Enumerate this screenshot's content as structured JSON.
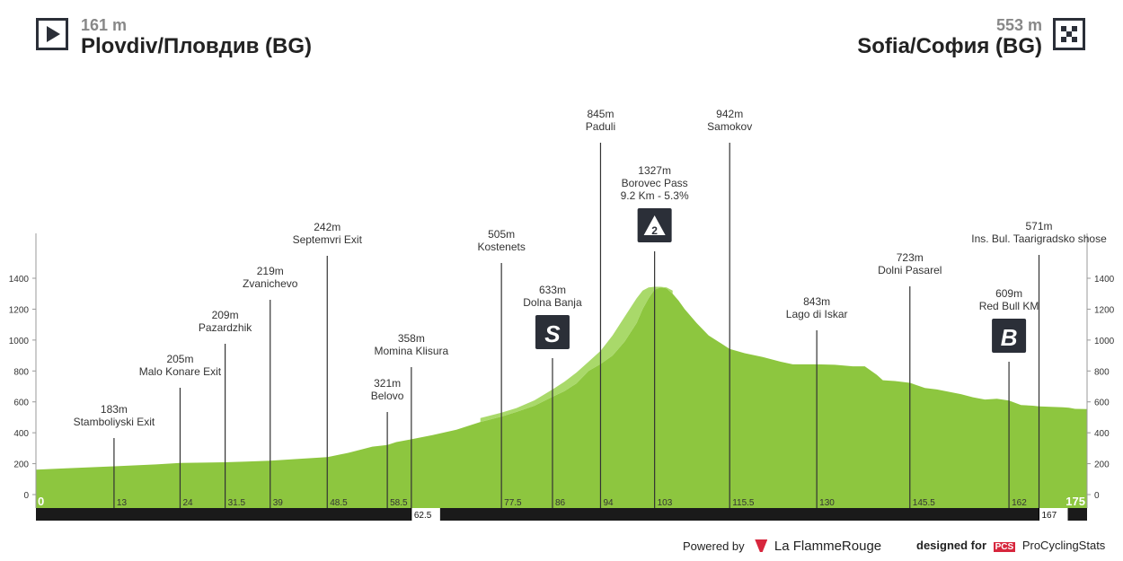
{
  "start": {
    "alt": "161 m",
    "name": "Plovdiv/Пловдив (BG)"
  },
  "finish": {
    "alt": "553 m",
    "name": "Sofia/София (BG)"
  },
  "footer": {
    "powered": "Powered by",
    "brand": "La FlammeRouge",
    "designed": "designed for",
    "pcs": "PCS",
    "brand2": "ProCyclingStats"
  },
  "chart_data": {
    "type": "area",
    "title": "",
    "xlabel": "",
    "ylabel": "",
    "ylim": [
      0,
      1400
    ],
    "xlim": [
      0,
      175
    ],
    "y_ticks": [
      0,
      200,
      400,
      600,
      800,
      1000,
      1200,
      1400
    ],
    "x_ticks": [
      "0",
      "13",
      "24",
      "31.5",
      "39",
      "48.5",
      "58.5",
      "77.5",
      "86",
      "94",
      "103",
      "115.5",
      "130",
      "145.5",
      "162",
      "175"
    ],
    "bar_ticks": [
      "62.5",
      "167"
    ],
    "profile": {
      "x": [
        0,
        5,
        13,
        20,
        24,
        28,
        31.5,
        35,
        39,
        44,
        48.5,
        52,
        56,
        58.5,
        60,
        62.5,
        66,
        70,
        74,
        77.5,
        80,
        83,
        86,
        88,
        90,
        92,
        94,
        96,
        98,
        100,
        101,
        102,
        103,
        104,
        105,
        106,
        107,
        108,
        110,
        112,
        114,
        115.5,
        118,
        121,
        124,
        126,
        128,
        130,
        133,
        136,
        138,
        140,
        141,
        143,
        145.5,
        148,
        150,
        152,
        154,
        156,
        158,
        160,
        162,
        164,
        166,
        167,
        169,
        171,
        172,
        173,
        175
      ],
      "y": [
        161,
        170,
        183,
        195,
        205,
        207,
        209,
        214,
        219,
        232,
        242,
        270,
        310,
        321,
        340,
        358,
        385,
        420,
        470,
        505,
        535,
        575,
        633,
        670,
        720,
        800,
        845,
        900,
        990,
        1110,
        1200,
        1270,
        1327,
        1340,
        1335,
        1300,
        1255,
        1200,
        1110,
        1030,
        980,
        942,
        915,
        890,
        860,
        843,
        843,
        843,
        840,
        830,
        830,
        775,
        740,
        735,
        723,
        690,
        680,
        665,
        650,
        630,
        615,
        620,
        609,
        580,
        575,
        571,
        568,
        565,
        562,
        555,
        553
      ]
    },
    "profile_top": {
      "x": [
        74,
        77.5,
        80,
        83,
        86,
        88,
        90,
        92,
        94,
        96,
        98,
        100,
        101,
        102,
        103,
        104,
        105,
        106
      ],
      "y": [
        495,
        530,
        560,
        610,
        680,
        730,
        790,
        860,
        930,
        1030,
        1150,
        1270,
        1320,
        1340,
        1345,
        1345,
        1340,
        1320
      ]
    },
    "points": [
      {
        "km": 13,
        "alt": "183m",
        "name": "Stamboliyski Exit",
        "label_y": 460
      },
      {
        "km": 24,
        "alt": "205m",
        "name": "Malo Konare Exit",
        "label_y": 404
      },
      {
        "km": 31.5,
        "alt": "209m",
        "name": "Pazardzhik",
        "label_y": 355
      },
      {
        "km": 39,
        "alt": "219m",
        "name": "Zvanichevo",
        "label_y": 306
      },
      {
        "km": 48.5,
        "alt": "242m",
        "name": "Septemvri Exit",
        "label_y": 257
      },
      {
        "km": 58.5,
        "alt": "321m",
        "name": "Belovo",
        "label_y": 431
      },
      {
        "km": 62.5,
        "alt": "358m",
        "name": "Momina Klisura",
        "label_y": 381
      },
      {
        "km": 77.5,
        "alt": "505m",
        "name": "Kostenets",
        "label_y": 265
      },
      {
        "km": 86,
        "alt": "633m",
        "name": "Dolna Banja",
        "label_y": 327,
        "badge": "S"
      },
      {
        "km": 94,
        "alt": "845m",
        "name": "Paduli",
        "label_y": 131
      },
      {
        "km": 103,
        "alt": "1327m",
        "name": "Borovec Pass",
        "extra": "9.2 Km - 5.3%",
        "label_y": 194,
        "badge": "2"
      },
      {
        "km": 115.5,
        "alt": "942m",
        "name": "Samokov",
        "label_y": 131
      },
      {
        "km": 130,
        "alt": "843m",
        "name": "Lago di Iskar",
        "label_y": 340
      },
      {
        "km": 145.5,
        "alt": "723m",
        "name": "Dolni Pasarel",
        "label_y": 291
      },
      {
        "km": 162,
        "alt": "609m",
        "name": "Red Bull KM",
        "label_y": 331,
        "badge": "B"
      },
      {
        "km": 167,
        "alt": "571m",
        "name": "Ins. Bul. Taarigradsko shose",
        "label_y": 256
      }
    ],
    "colors": {
      "fill": "#8dc63f",
      "fill_top": "#a9d96a",
      "axis_bar": "#1a1a1a",
      "badge": "#2b2f38"
    }
  }
}
